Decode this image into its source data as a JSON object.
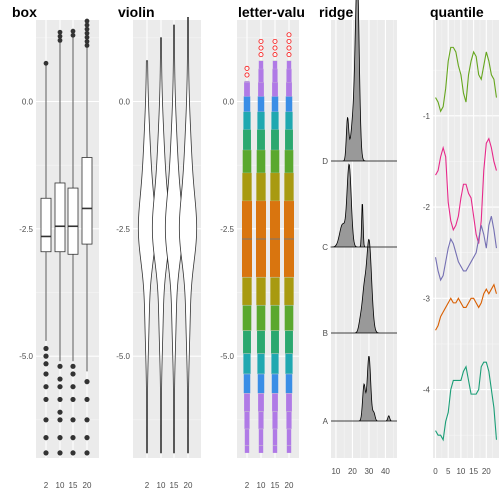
{
  "chart_data": [
    {
      "type": "box",
      "title": "box",
      "categories": [
        "2",
        "10",
        "15",
        "20"
      ],
      "ylim": [
        -7.0,
        1.6
      ],
      "y_ticks": [
        0.0,
        -2.5,
        -5.0
      ],
      "y_tick_labels": [
        "0.0",
        "-2.5",
        "-5.0"
      ],
      "boxes": [
        {
          "label": "2",
          "q1": -2.95,
          "median": -2.65,
          "q3": -1.9,
          "whisker_low": -4.7,
          "whisker_high": 0.75
        },
        {
          "label": "10",
          "q1": -2.95,
          "median": -2.45,
          "q3": -1.6,
          "whisker_low": -5.1,
          "whisker_high": 1.2
        },
        {
          "label": "15",
          "q1": -3.0,
          "median": -2.45,
          "q3": -1.7,
          "whisker_low": -5.1,
          "whisker_high": 1.3
        },
        {
          "label": "20",
          "q1": -2.8,
          "median": -2.1,
          "q3": -1.1,
          "whisker_low": -5.3,
          "whisker_high": 1.1
        }
      ],
      "outliers": [
        {
          "label": "2",
          "values": [
            -4.85,
            -5.0,
            -5.15,
            -5.35,
            -5.6,
            -5.85,
            -6.25,
            -6.6,
            -6.9
          ]
        },
        {
          "label": "10",
          "values": [
            -5.2,
            -5.45,
            -5.6,
            -5.85,
            -6.1,
            -6.25,
            -6.6,
            -6.9
          ]
        },
        {
          "label": "15",
          "values": [
            -5.2,
            -5.35,
            -5.6,
            -5.85,
            -6.25,
            -6.6,
            -6.9
          ]
        },
        {
          "label": "20",
          "values": [
            -5.5,
            -5.85,
            -6.25,
            -6.6,
            -6.9
          ]
        }
      ],
      "upper_outlier_tops": {
        "2": 0.75,
        "10": 1.4,
        "15": 1.4,
        "20": 1.6
      }
    },
    {
      "type": "violin",
      "title": "violin",
      "categories": [
        "2",
        "10",
        "15",
        "20"
      ],
      "ylim": [
        -7.0,
        1.6
      ],
      "y_ticks": [
        0.0,
        -2.5,
        -5.0
      ],
      "y_tick_labels": [
        "0.0",
        "-2.5",
        "-5.0"
      ],
      "ranges": [
        {
          "label": "2",
          "min": -6.9,
          "max": 0.8
        },
        {
          "label": "10",
          "min": -6.9,
          "max": 1.25
        },
        {
          "label": "15",
          "min": -6.9,
          "max": 1.5
        },
        {
          "label": "20",
          "min": -6.9,
          "max": 1.65
        }
      ]
    },
    {
      "type": "letter-value",
      "title": "letter-valu",
      "categories": [
        "2",
        "10",
        "15",
        "20"
      ],
      "ylim": [
        -7.0,
        1.6
      ],
      "y_ticks": [
        0.0,
        -2.5,
        -5.0
      ],
      "y_tick_labels": [
        "0.0",
        "-2.5",
        "-5.0"
      ],
      "outlier_tops": {
        "2": 0.75,
        "10": 1.3,
        "15": 1.3,
        "20": 1.35
      },
      "box_colors": [
        "#d9750f",
        "#a89a10",
        "#5aa82e",
        "#2ba86f",
        "#20a8b0",
        "#3a8ee6",
        "#b07ae6"
      ]
    },
    {
      "type": "ridge",
      "title": "ridge",
      "categories": [
        "A",
        "B",
        "C",
        "D"
      ],
      "x_ticks": [
        10,
        20,
        30,
        40
      ],
      "x_tick_labels": [
        "10",
        "20",
        "30",
        "40"
      ],
      "xlim": [
        7,
        47
      ],
      "fill_color": "#999999"
    },
    {
      "type": "line",
      "title": "quantile",
      "x_ticks": [
        0,
        5,
        10,
        15,
        20
      ],
      "x_tick_labels": [
        "0",
        "5",
        "10",
        "15",
        "20"
      ],
      "xlim": [
        -1,
        25
      ],
      "ylim": [
        -4.75,
        0.05
      ],
      "y_ticks": [
        -1,
        -2,
        -3,
        -4
      ],
      "y_tick_labels": [
        "-1",
        "-2",
        "-3",
        "-4"
      ],
      "series": [
        {
          "color": "#66a61e",
          "x": [
            0,
            1,
            2,
            3,
            4,
            5,
            6,
            7,
            8,
            9,
            10,
            11,
            12,
            13,
            14,
            15,
            16,
            17,
            18,
            19,
            20,
            21,
            22,
            23,
            24
          ],
          "y": [
            -0.8,
            -0.85,
            -0.95,
            -0.9,
            -0.7,
            -0.4,
            -0.25,
            -0.25,
            -0.3,
            -0.45,
            -0.55,
            -0.75,
            -0.85,
            -0.55,
            -0.4,
            -0.3,
            -0.35,
            -0.55,
            -0.6,
            -0.45,
            -0.3,
            -0.4,
            -0.55,
            -0.6,
            -0.8
          ]
        },
        {
          "color": "#e7298a",
          "x": [
            0,
            1,
            2,
            3,
            4,
            5,
            6,
            7,
            8,
            9,
            10,
            11,
            12,
            13,
            14,
            15,
            16,
            17,
            18,
            19,
            20,
            21,
            22,
            23,
            24
          ],
          "y": [
            -1.65,
            -1.6,
            -1.45,
            -1.35,
            -1.45,
            -1.95,
            -2.15,
            -2.25,
            -2.2,
            -2.1,
            -1.9,
            -1.75,
            -1.75,
            -1.85,
            -1.9,
            -2.1,
            -2.3,
            -2.4,
            -2.15,
            -1.6,
            -1.3,
            -1.25,
            -1.35,
            -1.5,
            -1.6
          ]
        },
        {
          "color": "#7570b3",
          "x": [
            0,
            1,
            2,
            3,
            4,
            5,
            6,
            7,
            8,
            9,
            10,
            11,
            12,
            13,
            14,
            15,
            16,
            17,
            18,
            19,
            20,
            21,
            22,
            23,
            24
          ],
          "y": [
            -2.55,
            -2.7,
            -2.8,
            -2.75,
            -2.6,
            -2.45,
            -2.35,
            -2.4,
            -2.5,
            -2.6,
            -2.65,
            -2.7,
            -2.7,
            -2.65,
            -2.6,
            -2.55,
            -2.5,
            -2.35,
            -2.2,
            -2.3,
            -2.45,
            -2.2,
            -2.1,
            -2.25,
            -2.45
          ]
        },
        {
          "color": "#d95f02",
          "x": [
            0,
            1,
            2,
            3,
            4,
            5,
            6,
            7,
            8,
            9,
            10,
            11,
            12,
            13,
            14,
            15,
            16,
            17,
            18,
            19,
            20,
            21,
            22,
            23,
            24
          ],
          "y": [
            -3.35,
            -3.3,
            -3.2,
            -3.15,
            -3.1,
            -3.05,
            -3.0,
            -3.05,
            -3.05,
            -3.0,
            -3.05,
            -3.1,
            -3.1,
            -3.05,
            -3.0,
            -3.0,
            -3.05,
            -3.1,
            -3.05,
            -2.95,
            -2.9,
            -2.95,
            -2.9,
            -2.85,
            -2.95
          ]
        },
        {
          "color": "#1b9e77",
          "x": [
            0,
            1,
            2,
            3,
            4,
            5,
            6,
            7,
            8,
            9,
            10,
            11,
            12,
            13,
            14,
            15,
            16,
            17,
            18,
            19,
            20,
            21,
            22,
            23,
            24
          ],
          "y": [
            -4.45,
            -4.5,
            -4.5,
            -4.55,
            -4.35,
            -4.25,
            -4.0,
            -3.9,
            -3.9,
            -3.9,
            -3.9,
            -3.8,
            -3.75,
            -3.9,
            -4.05,
            -4.05,
            -4.05,
            -4.0,
            -3.75,
            -3.7,
            -3.7,
            -3.8,
            -4.0,
            -4.2,
            -4.55
          ]
        }
      ]
    }
  ]
}
